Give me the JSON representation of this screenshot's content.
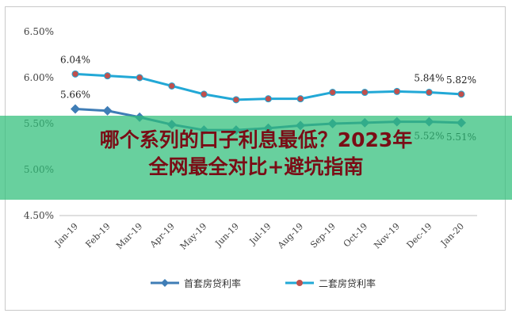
{
  "chart_data": {
    "type": "line",
    "categories": [
      "Jan-19",
      "Feb-19",
      "Mar-19",
      "Apr-19",
      "May-19",
      "Jun-19",
      "Jul-19",
      "Aug-19",
      "Sep-19",
      "Oct-19",
      "Nov-19",
      "Dec-19",
      "Jan-20"
    ],
    "ylim": [
      4.5,
      6.5
    ],
    "yticks": [
      "4.50%",
      "5.00%",
      "5.50%",
      "6.00%",
      "6.50%"
    ],
    "grid": false,
    "legend_position": "bottom",
    "series": [
      {
        "name": "首套房贷利率",
        "color": "#3f7db6",
        "marker": "diamond",
        "values": [
          5.66,
          5.64,
          5.57,
          5.49,
          5.43,
          5.43,
          5.45,
          5.48,
          5.5,
          5.51,
          5.52,
          5.52,
          5.51
        ]
      },
      {
        "name": "二套房贷利率",
        "color": "#22a8d6",
        "marker": "circle",
        "marker_color": "#c0504d",
        "values": [
          6.04,
          6.02,
          6.0,
          5.91,
          5.82,
          5.76,
          5.77,
          5.77,
          5.84,
          5.84,
          5.85,
          5.84,
          5.82
        ]
      }
    ],
    "annotations": [
      {
        "series": 1,
        "index": 0,
        "text": "6.04%"
      },
      {
        "series": 0,
        "index": 0,
        "text": "5.66%"
      },
      {
        "series": 1,
        "index": 11,
        "text": "5.84%"
      },
      {
        "series": 1,
        "index": 12,
        "text": "5.82%"
      },
      {
        "series": 0,
        "index": 11,
        "text": "5.52%"
      },
      {
        "series": 0,
        "index": 12,
        "text": "5.51%"
      }
    ]
  },
  "banner": {
    "line1": "哪个系列的口子利息最低？2023年",
    "line2": "全网最全对比+避坑指南",
    "color": "#2ebe78"
  }
}
